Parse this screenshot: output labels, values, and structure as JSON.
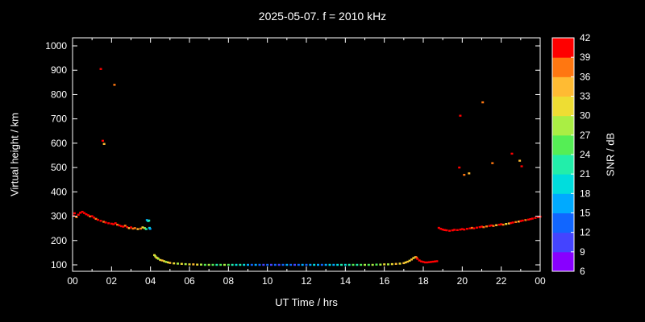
{
  "chart_data": {
    "type": "scatter",
    "title": "2025-05-07. f = 2010 kHz",
    "xlabel": "UT Time / hrs",
    "ylabel": "Virtual height / km",
    "colorbar_label": "SNR / dB",
    "xlim": [
      0,
      24
    ],
    "ylim": [
      100,
      1000
    ],
    "x_tick_values": [
      0,
      2,
      4,
      6,
      8,
      10,
      12,
      14,
      16,
      18,
      20,
      22,
      24
    ],
    "x_tick_labels": [
      "00",
      "02",
      "04",
      "06",
      "08",
      "10",
      "12",
      "14",
      "16",
      "18",
      "20",
      "22",
      "00"
    ],
    "y_ticks": [
      100,
      200,
      300,
      400,
      500,
      600,
      700,
      800,
      900,
      1000
    ],
    "snr_ticks": [
      6,
      9,
      12,
      15,
      18,
      21,
      24,
      27,
      30,
      33,
      36,
      39,
      42
    ],
    "snr_range": [
      6,
      42
    ],
    "snr_colors": [
      "#8800ff",
      "#4444ff",
      "#1166ff",
      "#00aaff",
      "#00dddd",
      "#22eeaa",
      "#55ee55",
      "#aaee44",
      "#eedd33",
      "#ffbb33",
      "#ff7711",
      "#ff0000"
    ],
    "background": "#000000",
    "axis_color": "#ffffff",
    "points": [
      [
        0.05,
        302,
        39
      ],
      [
        0.1,
        312,
        41
      ],
      [
        0.2,
        296,
        38
      ],
      [
        0.3,
        306,
        40
      ],
      [
        0.4,
        314,
        41
      ],
      [
        0.5,
        318,
        42
      ],
      [
        0.6,
        313,
        40
      ],
      [
        0.7,
        308,
        39
      ],
      [
        0.8,
        304,
        40
      ],
      [
        0.9,
        299,
        38
      ],
      [
        1.0,
        300,
        41
      ],
      [
        1.1,
        294,
        39
      ],
      [
        1.2,
        289,
        37
      ],
      [
        1.3,
        285,
        40
      ],
      [
        1.45,
        281,
        39
      ],
      [
        1.6,
        277,
        38
      ],
      [
        1.7,
        274,
        40
      ],
      [
        1.85,
        271,
        39
      ],
      [
        2.0,
        269,
        41
      ],
      [
        2.1,
        267,
        40
      ],
      [
        2.2,
        271,
        39
      ],
      [
        2.3,
        265,
        38
      ],
      [
        2.4,
        262,
        40
      ],
      [
        2.5,
        259,
        41
      ],
      [
        2.6,
        257,
        39
      ],
      [
        2.7,
        261,
        36
      ],
      [
        2.8,
        255,
        40
      ],
      [
        2.9,
        251,
        33
      ],
      [
        3.0,
        254,
        39
      ],
      [
        3.1,
        249,
        38
      ],
      [
        3.2,
        251,
        36
      ],
      [
        3.35,
        247,
        33
      ],
      [
        3.5,
        249,
        36
      ],
      [
        3.6,
        254,
        30
      ],
      [
        3.7,
        251,
        27
      ],
      [
        3.78,
        247,
        21
      ],
      [
        3.82,
        284,
        15
      ],
      [
        3.88,
        280,
        18
      ],
      [
        3.92,
        282,
        21
      ],
      [
        3.95,
        252,
        18
      ],
      [
        3.98,
        248,
        15
      ],
      [
        1.45,
        905,
        41
      ],
      [
        1.55,
        610,
        39
      ],
      [
        1.62,
        597,
        33
      ],
      [
        2.15,
        840,
        36
      ],
      [
        4.2,
        140,
        30
      ],
      [
        4.25,
        135,
        27
      ],
      [
        4.3,
        130,
        33
      ],
      [
        4.35,
        128,
        30
      ],
      [
        4.4,
        125,
        27
      ],
      [
        4.5,
        120,
        30
      ],
      [
        4.6,
        118,
        33
      ],
      [
        4.7,
        115,
        30
      ],
      [
        4.8,
        112,
        27
      ],
      [
        4.9,
        110,
        30
      ],
      [
        5.0,
        108,
        33
      ],
      [
        5.2,
        106,
        30
      ],
      [
        5.4,
        105,
        27
      ],
      [
        5.6,
        104,
        30
      ],
      [
        5.8,
        103,
        27
      ],
      [
        6.0,
        102,
        30
      ],
      [
        6.2,
        102,
        33
      ],
      [
        6.4,
        101,
        30
      ],
      [
        6.6,
        101,
        27
      ],
      [
        6.8,
        100,
        24
      ],
      [
        7.0,
        100,
        27
      ],
      [
        7.2,
        100,
        24
      ],
      [
        7.4,
        100,
        21
      ],
      [
        7.6,
        100,
        24
      ],
      [
        7.8,
        100,
        27
      ],
      [
        8.0,
        100,
        24
      ],
      [
        8.2,
        100,
        21
      ],
      [
        8.4,
        100,
        18
      ],
      [
        8.6,
        100,
        21
      ],
      [
        8.8,
        100,
        18
      ],
      [
        9.0,
        100,
        15
      ],
      [
        9.2,
        100,
        12
      ],
      [
        9.4,
        100,
        15
      ],
      [
        9.6,
        100,
        12
      ],
      [
        9.8,
        100,
        9
      ],
      [
        10.0,
        100,
        12
      ],
      [
        10.2,
        100,
        9
      ],
      [
        10.4,
        100,
        12
      ],
      [
        10.6,
        100,
        9
      ],
      [
        10.8,
        100,
        12
      ],
      [
        11.0,
        100,
        15
      ],
      [
        11.2,
        100,
        12
      ],
      [
        11.4,
        100,
        9
      ],
      [
        11.6,
        100,
        12
      ],
      [
        11.8,
        100,
        15
      ],
      [
        12.0,
        100,
        12
      ],
      [
        12.2,
        100,
        15
      ],
      [
        12.4,
        100,
        18
      ],
      [
        12.6,
        100,
        15
      ],
      [
        12.8,
        100,
        12
      ],
      [
        13.0,
        100,
        15
      ],
      [
        13.2,
        100,
        18
      ],
      [
        13.4,
        100,
        15
      ],
      [
        13.6,
        100,
        18
      ],
      [
        13.8,
        100,
        21
      ],
      [
        14.0,
        100,
        18
      ],
      [
        14.2,
        100,
        21
      ],
      [
        14.4,
        100,
        24
      ],
      [
        14.6,
        100,
        21
      ],
      [
        14.8,
        100,
        24
      ],
      [
        15.0,
        100,
        27
      ],
      [
        15.2,
        100,
        24
      ],
      [
        15.4,
        100,
        27
      ],
      [
        15.6,
        101,
        24
      ],
      [
        15.8,
        101,
        27
      ],
      [
        16.0,
        102,
        30
      ],
      [
        16.2,
        102,
        27
      ],
      [
        16.4,
        103,
        30
      ],
      [
        16.6,
        104,
        33
      ],
      [
        16.8,
        105,
        30
      ],
      [
        17.0,
        107,
        33
      ],
      [
        17.1,
        110,
        30
      ],
      [
        17.2,
        113,
        33
      ],
      [
        17.3,
        117,
        30
      ],
      [
        17.4,
        122,
        33
      ],
      [
        17.5,
        128,
        30
      ],
      [
        17.6,
        132,
        33
      ],
      [
        17.65,
        130,
        36
      ],
      [
        17.7,
        125,
        39
      ],
      [
        17.8,
        118,
        42
      ],
      [
        17.9,
        114,
        41
      ],
      [
        18.0,
        112,
        42
      ],
      [
        18.1,
        110,
        41
      ],
      [
        18.2,
        110,
        42
      ],
      [
        18.3,
        111,
        40
      ],
      [
        18.4,
        112,
        42
      ],
      [
        18.5,
        113,
        41
      ],
      [
        18.6,
        114,
        42
      ],
      [
        18.7,
        115,
        40
      ],
      [
        18.8,
        252,
        42
      ],
      [
        18.9,
        248,
        41
      ],
      [
        19.0,
        245,
        42
      ],
      [
        19.1,
        243,
        40
      ],
      [
        19.2,
        242,
        41
      ],
      [
        19.35,
        240,
        42
      ],
      [
        19.5,
        242,
        39
      ],
      [
        19.6,
        244,
        41
      ],
      [
        19.75,
        243,
        42
      ],
      [
        19.9,
        245,
        40
      ],
      [
        20.0,
        247,
        41
      ],
      [
        20.1,
        245,
        39
      ],
      [
        20.25,
        248,
        42
      ],
      [
        20.4,
        250,
        40
      ],
      [
        20.5,
        252,
        38
      ],
      [
        20.6,
        250,
        41
      ],
      [
        20.75,
        253,
        39
      ],
      [
        20.9,
        255,
        40
      ],
      [
        21.0,
        257,
        42
      ],
      [
        21.1,
        255,
        38
      ],
      [
        21.25,
        258,
        36
      ],
      [
        21.4,
        260,
        39
      ],
      [
        21.5,
        262,
        41
      ],
      [
        21.6,
        260,
        36
      ],
      [
        21.75,
        263,
        33
      ],
      [
        21.9,
        265,
        39
      ],
      [
        22.0,
        267,
        41
      ],
      [
        22.1,
        265,
        36
      ],
      [
        22.25,
        268,
        30
      ],
      [
        22.4,
        270,
        33
      ],
      [
        22.5,
        272,
        39
      ],
      [
        22.6,
        274,
        41
      ],
      [
        22.75,
        276,
        36
      ],
      [
        22.9,
        278,
        33
      ],
      [
        23.0,
        280,
        39
      ],
      [
        23.1,
        282,
        41
      ],
      [
        23.25,
        284,
        36
      ],
      [
        23.4,
        286,
        39
      ],
      [
        23.5,
        288,
        41
      ],
      [
        23.6,
        290,
        42
      ],
      [
        23.75,
        293,
        40
      ],
      [
        23.9,
        296,
        41
      ],
      [
        24.0,
        298,
        42
      ],
      [
        19.85,
        500,
        42
      ],
      [
        20.1,
        470,
        36
      ],
      [
        20.35,
        476,
        33
      ],
      [
        19.9,
        713,
        39
      ],
      [
        21.05,
        768,
        36
      ],
      [
        21.55,
        518,
        36
      ],
      [
        22.55,
        557,
        39
      ],
      [
        22.95,
        528,
        33
      ],
      [
        23.05,
        505,
        42
      ]
    ]
  }
}
